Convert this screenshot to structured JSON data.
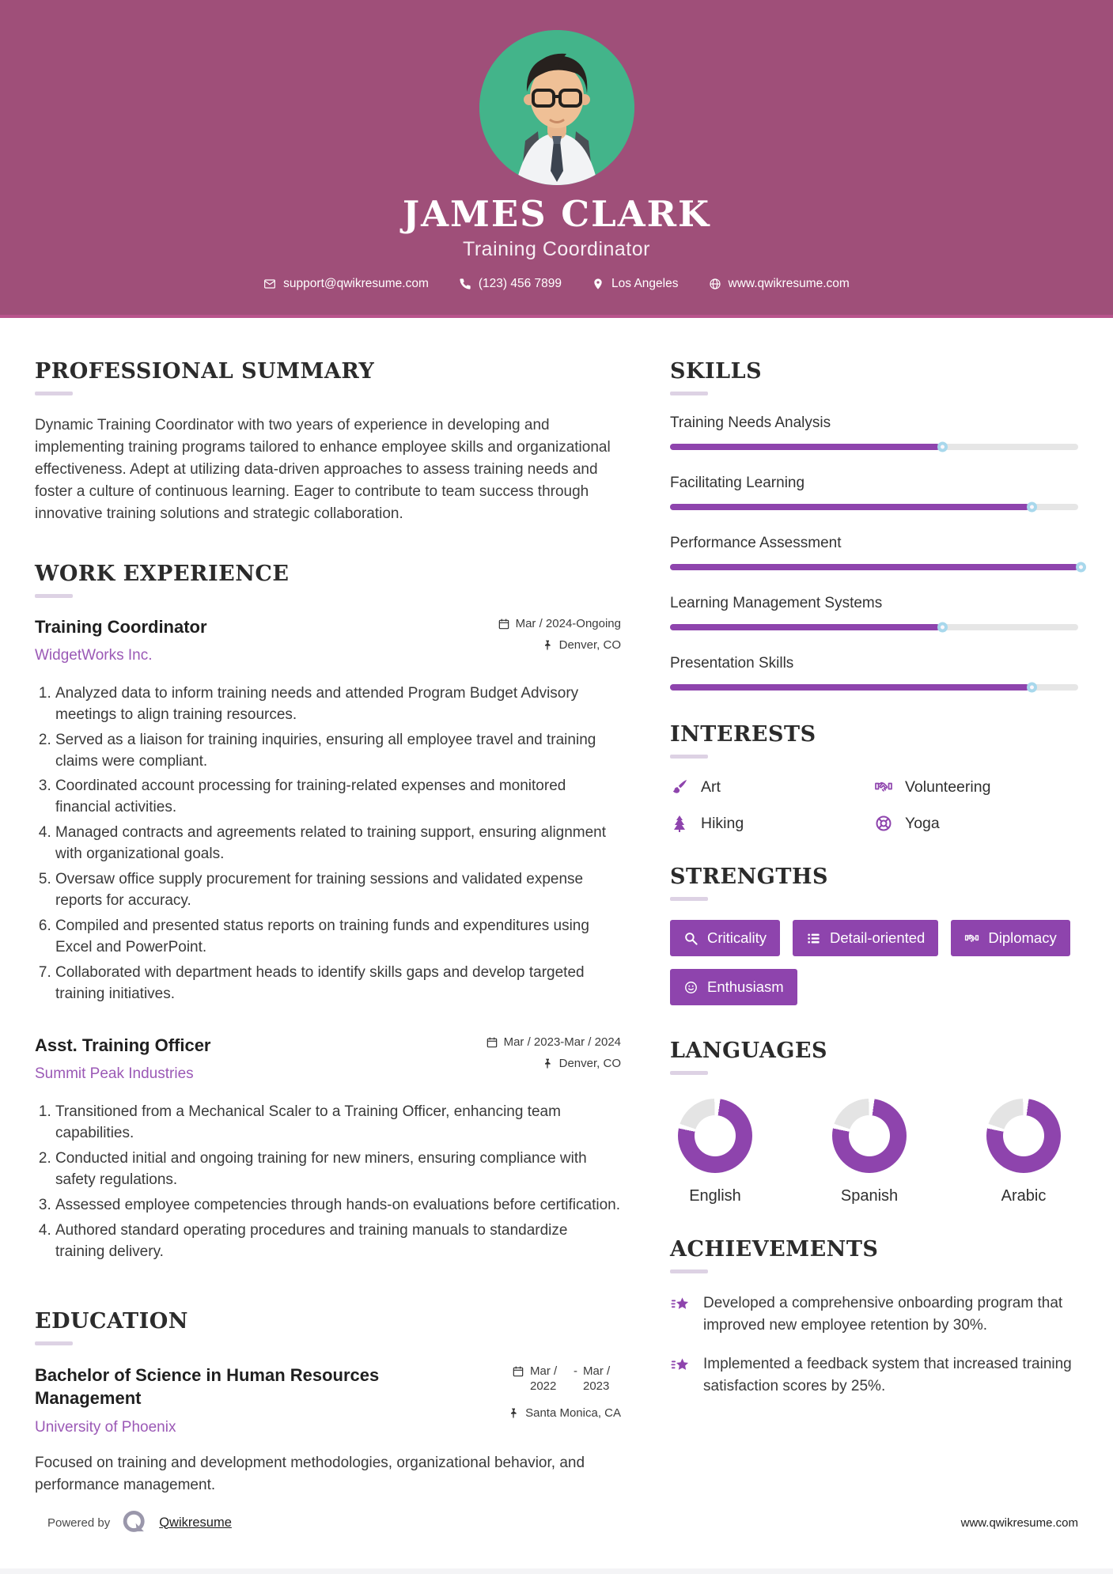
{
  "colors": {
    "accent": "#8e44ad",
    "header_bg": "#9f4f79",
    "photo_bg": "#43b48a",
    "link": "#9b59b6",
    "track": "#e4e4e4"
  },
  "header": {
    "name": "JAMES CLARK",
    "title": "Training Coordinator",
    "contact": {
      "email": "support@qwikresume.com",
      "phone": "(123) 456 7899",
      "location": "Los Angeles",
      "website": "www.qwikresume.com"
    }
  },
  "summary": {
    "heading": "PROFESSIONAL SUMMARY",
    "text": "Dynamic Training Coordinator with two years of experience in developing and implementing training programs tailored to enhance employee skills and organizational effectiveness. Adept at utilizing data-driven approaches to assess training needs and foster a culture of continuous learning. Eager to contribute to team success through innovative training solutions and strategic collaboration."
  },
  "experience": {
    "heading": "WORK EXPERIENCE",
    "jobs": [
      {
        "title": "Training Coordinator",
        "company": "WidgetWorks Inc.",
        "dates": "Mar / 2024-Ongoing",
        "location": "Denver, CO",
        "bullets": [
          "Analyzed data to inform training needs and attended Program Budget Advisory meetings to align training resources.",
          "Served as a liaison for training inquiries, ensuring all employee travel and training claims were compliant.",
          "Coordinated account processing for training-related expenses and monitored financial activities.",
          "Managed contracts and agreements related to training support, ensuring alignment with organizational goals.",
          "Oversaw office supply procurement for training sessions and validated expense reports for accuracy.",
          "Compiled and presented status reports on training funds and expenditures using Excel and PowerPoint.",
          "Collaborated with department heads to identify skills gaps and develop targeted training initiatives."
        ]
      },
      {
        "title": "Asst. Training Officer",
        "company": "Summit Peak Industries",
        "dates": "Mar / 2023-Mar / 2024",
        "location": "Denver, CO",
        "bullets": [
          "Transitioned from a Mechanical Scaler to a Training Officer, enhancing team capabilities.",
          "Conducted initial and ongoing training for new miners, ensuring compliance with safety regulations.",
          "Assessed employee competencies through hands-on evaluations before certification.",
          "Authored standard operating procedures and training manuals to standardize training delivery."
        ]
      }
    ]
  },
  "education": {
    "heading": "EDUCATION",
    "degree": "Bachelor of Science in Human Resources Management",
    "school": "University of Phoenix",
    "date_start": "Mar / 2022",
    "date_separator": "-",
    "date_end": "Mar / 2023",
    "location": "Santa Monica, CA",
    "description": "Focused on training and development methodologies, organizational behavior, and performance management."
  },
  "skills": {
    "heading": "SKILLS",
    "items": [
      {
        "label": "Training Needs Analysis",
        "percent": 66
      },
      {
        "label": "Facilitating Learning",
        "percent": 88
      },
      {
        "label": "Performance Assessment",
        "percent": 100
      },
      {
        "label": "Learning Management Systems",
        "percent": 66
      },
      {
        "label": "Presentation Skills",
        "percent": 88
      }
    ]
  },
  "interests": {
    "heading": "INTERESTS",
    "items": [
      {
        "label": "Art",
        "icon": "paintbrush-icon"
      },
      {
        "label": "Volunteering",
        "icon": "handshake-icon"
      },
      {
        "label": "Hiking",
        "icon": "pine-tree-icon"
      },
      {
        "label": "Yoga",
        "icon": "lifebuoy-icon"
      }
    ]
  },
  "strengths": {
    "heading": "STRENGTHS",
    "items": [
      {
        "label": "Criticality",
        "icon": "magnifier-icon"
      },
      {
        "label": "Detail-oriented",
        "icon": "list-icon"
      },
      {
        "label": "Diplomacy",
        "icon": "handshake-icon"
      },
      {
        "label": "Enthusiasm",
        "icon": "smiley-icon"
      }
    ]
  },
  "languages": {
    "heading": "LANGUAGES",
    "items": [
      {
        "label": "English",
        "percent": 80
      },
      {
        "label": "Spanish",
        "percent": 80
      },
      {
        "label": "Arabic",
        "percent": 80
      }
    ]
  },
  "achievements": {
    "heading": "ACHIEVEMENTS",
    "items": [
      "Developed a comprehensive onboarding program that improved new employee retention by 30%.",
      "Implemented a feedback system that increased training satisfaction scores by 25%."
    ]
  },
  "footer": {
    "powered_by": "Powered by",
    "brand": "Qwikresume",
    "website": "www.qwikresume.com"
  }
}
